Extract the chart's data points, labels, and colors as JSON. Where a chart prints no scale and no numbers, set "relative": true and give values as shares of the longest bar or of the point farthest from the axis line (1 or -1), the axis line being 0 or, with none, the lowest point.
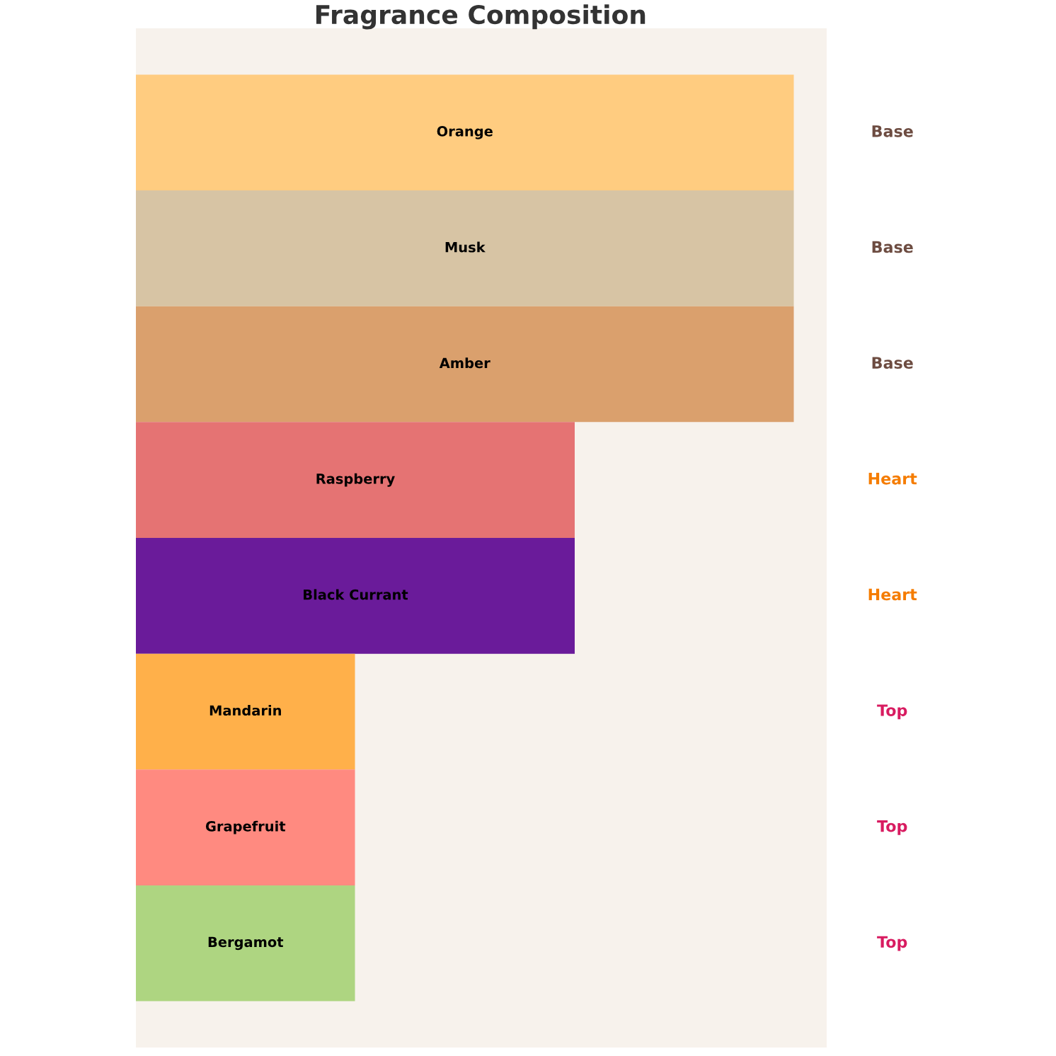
{
  "chart_data": {
    "type": "bar",
    "orientation": "horizontal",
    "relative": true,
    "title": "Fragrance Composition",
    "categories": [
      "Orange",
      "Musk",
      "Amber",
      "Raspberry",
      "Black Currant",
      "Mandarin",
      "Grapefruit",
      "Bergamot"
    ],
    "values": [
      1,
      1,
      1,
      0.667,
      0.667,
      0.333,
      0.333,
      0.333
    ],
    "colors": [
      "#ffcc80",
      "#d7c4a4",
      "#daa06d",
      "#e57373",
      "#6a1b9a",
      "#ffb04a",
      "#ff8a80",
      "#aed581"
    ],
    "annotations": [
      "Base",
      "Base",
      "Base",
      "Heart",
      "Heart",
      "Top",
      "Top",
      "Top"
    ]
  }
}
